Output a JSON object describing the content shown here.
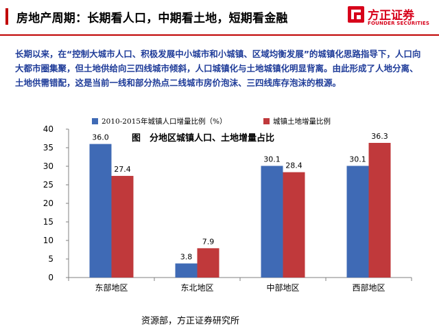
{
  "header": {
    "title": "房地产周期：长期看人口，中期看土地，短期看金融"
  },
  "logo": {
    "name": "方正证券",
    "sub": "FOUNDER SECURITIES",
    "color": "#d7001a"
  },
  "intro": {
    "text": "长期以来，在“控制大城市人口、积极发展中小城市和小城镇、区域均衡发展”的城镇化思路指导下，人口向大都市圈集聚，但土地供给向三四线城市倾斜，人口城镇化与土地城镇化明显背离。由此形成了人地分离、土地供需错配，这是当前一线和部分热点二线城市房价泡沫、三四线库存泡沫的根源。"
  },
  "chart_data": {
    "type": "bar",
    "title": "图　分地区城镇人口、土地增量占比",
    "categories": [
      "东部地区",
      "东北地区",
      "中部地区",
      "西部地区"
    ],
    "series": [
      {
        "name": "2010-2015年城镇人口增量比例（%）",
        "values": [
          36.0,
          3.8,
          30.1,
          30.1
        ],
        "color": "#3f6ab5"
      },
      {
        "name": "城镇土地增量比例",
        "values": [
          27.4,
          7.9,
          28.4,
          36.3
        ],
        "color": "#c0393b"
      }
    ],
    "value_labels": [
      [
        "36.0",
        "3.8",
        "30.1",
        "30.1"
      ],
      [
        "27.4",
        "7.9",
        "28.4",
        "36.3"
      ]
    ],
    "yticks": [
      "0",
      "5",
      "10",
      "15",
      "20",
      "25",
      "30",
      "35",
      "40"
    ],
    "ylim": [
      0,
      40
    ],
    "legend_position": "top",
    "grid": false
  },
  "source": {
    "text": "资源部，方正证券研究所"
  }
}
